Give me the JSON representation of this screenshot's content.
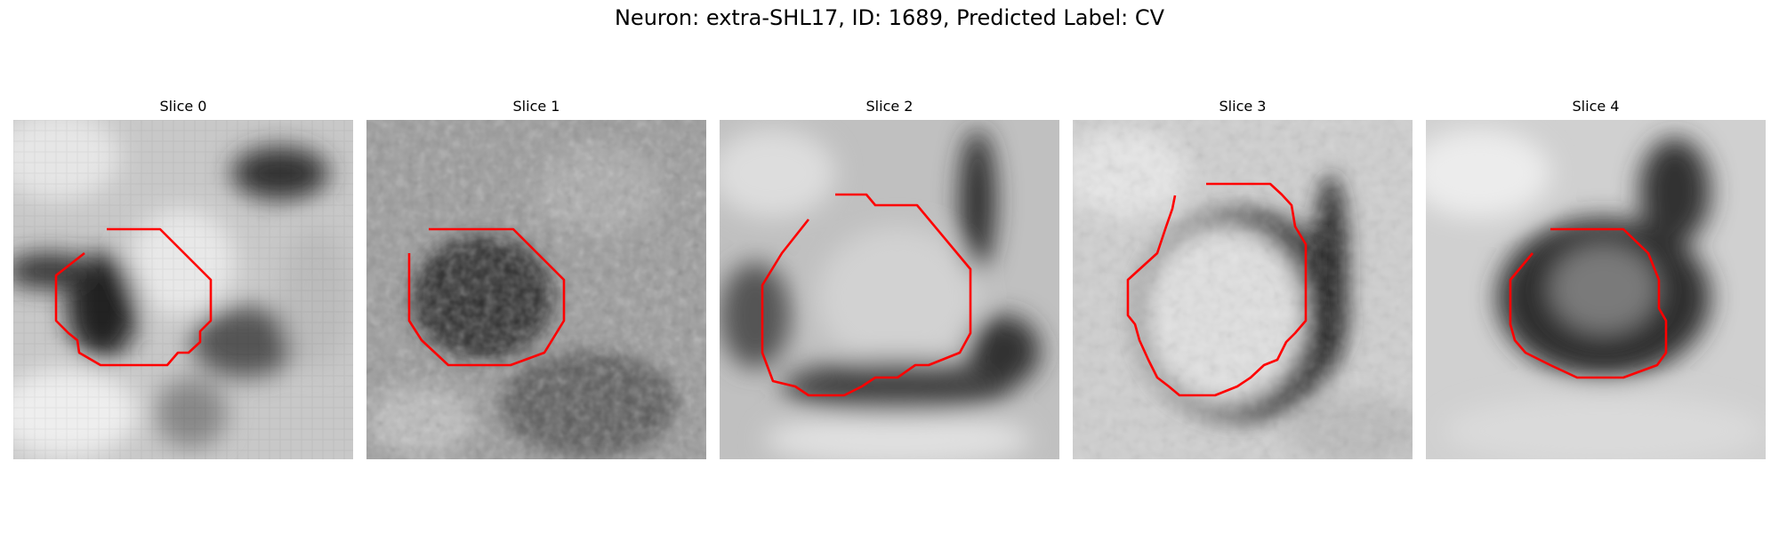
{
  "figure": {
    "title": "Neuron: extra-SHL17, ID: 1689, Predicted Label: CV",
    "contour_color": "#ff0000",
    "colormap": "grayscale",
    "panels": [
      {
        "title": "Slice 0"
      },
      {
        "title": "Slice 1"
      },
      {
        "title": "Slice 2"
      },
      {
        "title": "Slice 3"
      },
      {
        "title": "Slice 4"
      }
    ]
  }
}
